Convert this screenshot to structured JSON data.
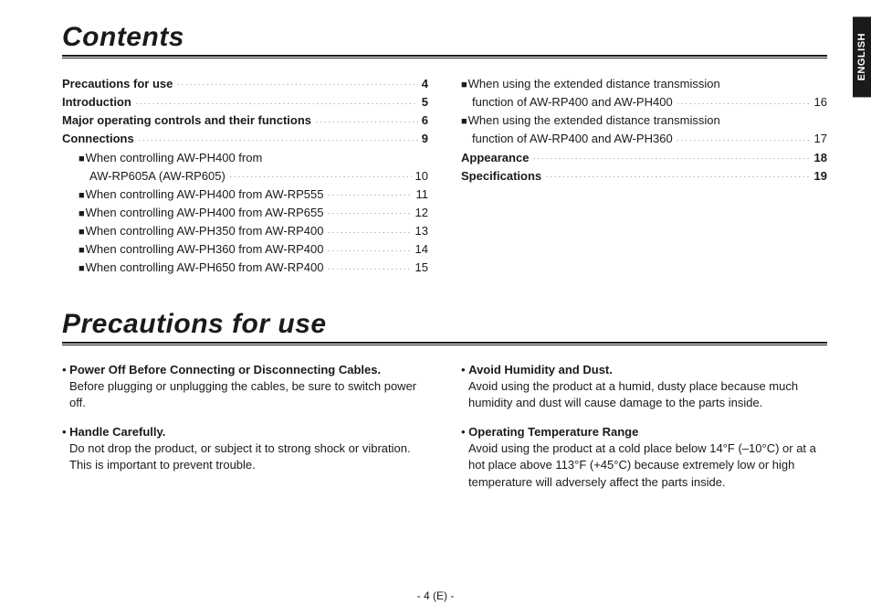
{
  "language_tab": "ENGLISH",
  "page_number": "- 4 (E) -",
  "sections": {
    "contents_title": "Contents",
    "precautions_title": "Precautions for use"
  },
  "toc": {
    "left": [
      {
        "label": "Precautions for use",
        "page": "4",
        "bold": true,
        "indent": 0,
        "bullet": false,
        "lines": 1
      },
      {
        "label": "Introduction",
        "page": "5",
        "bold": true,
        "indent": 0,
        "bullet": false,
        "lines": 1
      },
      {
        "label": "Major operating controls and their functions",
        "page": "6",
        "bold": true,
        "indent": 0,
        "bullet": false,
        "lines": 1
      },
      {
        "label": "Connections",
        "page": "9",
        "bold": true,
        "indent": 0,
        "bullet": false,
        "lines": 1
      },
      {
        "label": "When controlling AW-PH400 from",
        "label2": "AW-RP605A (AW-RP605)",
        "page": "10",
        "bold": false,
        "indent": 18,
        "bullet": true,
        "lines": 2
      },
      {
        "label": "When controlling AW-PH400 from AW-RP555",
        "page": "11",
        "bold": false,
        "indent": 18,
        "bullet": true,
        "lines": 1
      },
      {
        "label": "When controlling AW-PH400 from AW-RP655",
        "page": "12",
        "bold": false,
        "indent": 18,
        "bullet": true,
        "lines": 1
      },
      {
        "label": "When controlling AW-PH350 from AW-RP400",
        "page": "13",
        "bold": false,
        "indent": 18,
        "bullet": true,
        "lines": 1
      },
      {
        "label": "When controlling AW-PH360 from AW-RP400",
        "page": "14",
        "bold": false,
        "indent": 18,
        "bullet": true,
        "lines": 1
      },
      {
        "label": "When controlling AW-PH650 from AW-RP400",
        "page": "15",
        "bold": false,
        "indent": 18,
        "bullet": true,
        "lines": 1
      }
    ],
    "right": [
      {
        "label": "When using the extended distance transmission",
        "label2": "function of AW-RP400 and AW-PH400",
        "page": "16",
        "bold": false,
        "indent": 0,
        "bullet": true,
        "lines": 2
      },
      {
        "label": "When using the extended distance transmission",
        "label2": "function of AW-RP400 and AW-PH360",
        "page": "17",
        "bold": false,
        "indent": 0,
        "bullet": true,
        "lines": 2
      },
      {
        "label": "Appearance",
        "page": "18",
        "bold": true,
        "indent": 0,
        "bullet": false,
        "lines": 1
      },
      {
        "label": "Specifications",
        "page": "19",
        "bold": true,
        "indent": 0,
        "bullet": false,
        "lines": 1
      }
    ]
  },
  "precautions": {
    "left": [
      {
        "head": "Power Off Before Connecting or Disconnecting Cables.",
        "body": "Before plugging or unplugging the cables, be sure to switch power off."
      },
      {
        "head": "Handle Carefully.",
        "body": "Do not drop the product, or subject it to strong shock or vibration. This is important to prevent trouble."
      }
    ],
    "right": [
      {
        "head": "Avoid Humidity and Dust.",
        "body": "Avoid using the product at a humid, dusty place because much humidity and dust will cause damage to the parts inside."
      },
      {
        "head": "Operating Temperature Range",
        "body": "Avoid using the product at a cold place below 14°F (–10°C) or at a hot place above 113°F (+45°C) because extremely low or high temperature will adversely affect the parts inside."
      }
    ]
  }
}
